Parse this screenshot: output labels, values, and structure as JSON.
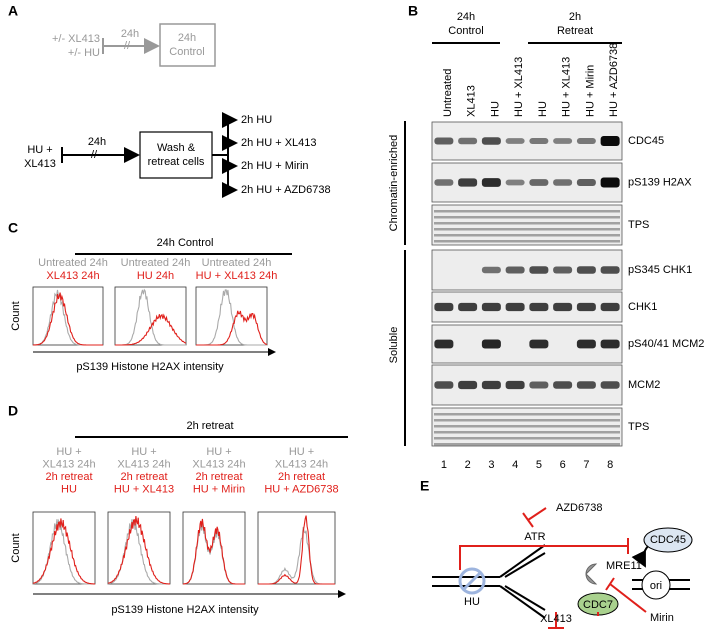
{
  "panel_a": {
    "label": "A",
    "control_conditions": [
      "+/- XL413",
      "+/- HU"
    ],
    "control_duration": "24h",
    "control_break": "//",
    "control_box": [
      "24h",
      "Control"
    ],
    "treatment": [
      "HU +",
      "XL413"
    ],
    "treatment_duration": "24h",
    "treatment_break": "//",
    "wash_box": [
      "Wash &",
      "retreat cells"
    ],
    "outcomes": [
      "2h HU",
      "2h HU + XL413",
      "2h HU + Mirin",
      "2h HU + AZD6738"
    ]
  },
  "panel_b": {
    "label": "B",
    "groups": [
      [
        "24h",
        "Control"
      ],
      [
        "2h",
        "Retreat"
      ]
    ],
    "lanes": [
      "Untreated",
      "XL413",
      "HU",
      "HU + XL413",
      "HU",
      "HU + XL413",
      "HU + Mirin",
      "HU + AZD6738"
    ],
    "rows": [
      "CDC45",
      "pS139 H2AX",
      "TPS",
      "pS345 CHK1",
      "CHK1",
      "pS40/41 MCM2",
      "MCM2",
      "TPS"
    ],
    "fractions": [
      "Chromatin-enriched",
      "Soluble"
    ],
    "lane_numbers": [
      "1",
      "2",
      "3",
      "4",
      "5",
      "6",
      "7",
      "8"
    ]
  },
  "panel_c": {
    "label": "C",
    "title": "24h Control",
    "y_label": "Count",
    "x_label": "pS139 Histone H2AX intensity",
    "plots": [
      {
        "gray": [
          "Untreated 24h"
        ],
        "red": [
          "XL413 24h"
        ]
      },
      {
        "gray": [
          "Untreated 24h"
        ],
        "red": [
          "HU 24h"
        ]
      },
      {
        "gray": [
          "Untreated 24h"
        ],
        "red": [
          "HU + XL413 24h"
        ]
      }
    ]
  },
  "panel_d": {
    "label": "D",
    "title": "2h retreat",
    "y_label": "Count",
    "x_label": "pS139 Histone H2AX intensity",
    "plots": [
      {
        "gray": [
          "HU +",
          "XL413 24h"
        ],
        "red": [
          "2h retreat",
          "HU"
        ]
      },
      {
        "gray": [
          "HU +",
          "XL413 24h"
        ],
        "red": [
          "2h retreat",
          "HU + XL413"
        ]
      },
      {
        "gray": [
          "HU +",
          "XL413 24h"
        ],
        "red": [
          "2h retreat",
          "HU + Mirin"
        ]
      },
      {
        "gray": [
          "HU +",
          "XL413 24h"
        ],
        "red": [
          "2h retreat",
          "HU + AZD6738"
        ]
      }
    ]
  },
  "panel_e": {
    "label": "E",
    "azd": "AZD6738",
    "atr": "ATR",
    "cdc45": "CDC45",
    "ori": "ori",
    "mre11": "MRE11",
    "hu": "HU",
    "cdc7": "CDC7",
    "mirin": "Mirin",
    "xl413": "XL413"
  }
}
